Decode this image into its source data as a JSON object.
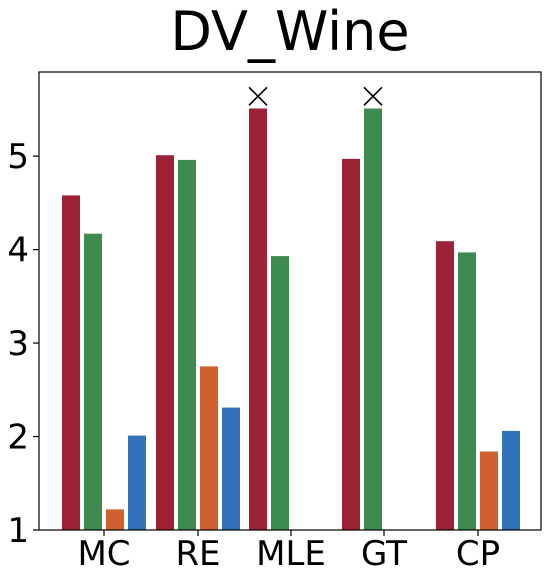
{
  "chart_data": {
    "type": "bar",
    "title": "DV_Wine",
    "xlabel": "",
    "ylabel": "",
    "categories": [
      "MC",
      "RE",
      "MLE",
      "GT",
      "CP"
    ],
    "ylim": [
      1,
      5.9
    ],
    "yticks": [
      1,
      2,
      3,
      4,
      5
    ],
    "ytick_labels": [
      "1",
      "2",
      "3",
      "4",
      "5"
    ],
    "grid": false,
    "legend": "none",
    "series": [
      {
        "color": "#9b2335",
        "values": [
          4.58,
          5.01,
          5.51,
          4.97,
          4.09
        ]
      },
      {
        "color": "#3d8b4f",
        "values": [
          4.17,
          4.96,
          3.93,
          5.51,
          3.97
        ]
      },
      {
        "color": "#cf6030",
        "values": [
          1.22,
          2.75,
          null,
          null,
          1.84
        ]
      },
      {
        "color": "#3272bb",
        "values": [
          2.01,
          2.31,
          null,
          null,
          2.06
        ]
      }
    ],
    "markers": [
      {
        "category": "MLE",
        "series_index": 0,
        "symbol": "x",
        "y": 5.64
      },
      {
        "category": "GT",
        "series_index": 1,
        "symbol": "x",
        "y": 5.64
      }
    ]
  }
}
